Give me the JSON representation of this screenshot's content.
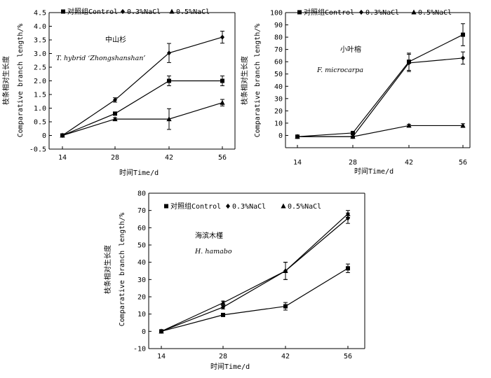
{
  "legend_labels": [
    "对照组Control",
    "0.3%NaCl",
    "0.5%NaCl"
  ],
  "xlabel": "时间Time/d",
  "ylabel_cn": "枝条相对生长度",
  "ylabel_en": "Comparative branch length/%",
  "chart_data": [
    {
      "type": "line",
      "title_cn": "中山杉",
      "title_en": "T. hybrid ‘Zhongshanshan’",
      "x": [
        14,
        28,
        42,
        56
      ],
      "xlabel": "时间Time/d",
      "ylim": [
        -0.5,
        4.5
      ],
      "yticks": [
        -0.5,
        0,
        0.5,
        1.0,
        1.5,
        2.0,
        2.5,
        3.0,
        3.5,
        4.0,
        4.5
      ],
      "ytick_labels": [
        "-0.5",
        "0",
        "0.5",
        "1.0",
        "1.5",
        "2.0",
        "2.5",
        "3.0",
        "3.5",
        "4.0",
        "4.5"
      ],
      "legend_position": "top",
      "series": [
        {
          "name": "对照组Control",
          "marker": "square",
          "values": [
            0,
            0.8,
            2.0,
            2.0
          ],
          "errors": [
            0,
            0.05,
            0.18,
            0.18
          ]
        },
        {
          "name": "0.3%NaCl",
          "marker": "circle",
          "values": [
            0,
            1.3,
            3.02,
            3.6
          ],
          "errors": [
            0,
            0.08,
            0.35,
            0.22
          ]
        },
        {
          "name": "0.5%NaCl",
          "marker": "triangle",
          "values": [
            0,
            0.6,
            0.6,
            1.2
          ],
          "errors": [
            0,
            0.05,
            0.38,
            0.12
          ]
        }
      ]
    },
    {
      "type": "line",
      "title_cn": "小叶榕",
      "title_en": "F. microcarpa",
      "x": [
        14,
        28,
        42,
        56
      ],
      "xlabel": "时间Time/d",
      "ylim": [
        -10,
        100
      ],
      "yticks": [
        0,
        10,
        20,
        30,
        40,
        50,
        60,
        70,
        80,
        90,
        100
      ],
      "ytick_labels": [
        "0",
        "10",
        "20",
        "30",
        "40",
        "50",
        "60",
        "70",
        "80",
        "90",
        "100"
      ],
      "legend_position": "top",
      "series": [
        {
          "name": "对照组Control",
          "marker": "square",
          "values": [
            -1,
            2,
            60,
            82
          ],
          "errors": [
            0,
            1,
            7,
            9
          ]
        },
        {
          "name": "0.3%NaCl",
          "marker": "circle",
          "values": [
            -1,
            -1,
            59,
            63
          ],
          "errors": [
            0,
            0.5,
            7,
            5
          ]
        },
        {
          "name": "0.5%NaCl",
          "marker": "triangle",
          "values": [
            -1,
            -1,
            8,
            8
          ],
          "errors": [
            0,
            0.5,
            1,
            1.5
          ]
        }
      ]
    },
    {
      "type": "line",
      "title_cn": "海滨木槿",
      "title_en": "H. hamabo",
      "x": [
        14,
        28,
        42,
        56
      ],
      "xlabel": "时间Time/d",
      "ylim": [
        -10,
        80
      ],
      "yticks": [
        -10,
        0,
        10,
        20,
        30,
        40,
        50,
        60,
        70,
        80
      ],
      "ytick_labels": [
        "-10",
        "0",
        "10",
        "20",
        "30",
        "40",
        "50",
        "60",
        "70",
        "80"
      ],
      "legend_position": "top",
      "series": [
        {
          "name": "对照组Control",
          "marker": "square",
          "values": [
            0,
            9.5,
            14.5,
            36.5
          ],
          "errors": [
            0,
            0.8,
            2.2,
            2.5
          ]
        },
        {
          "name": "0.3%NaCl",
          "marker": "circle",
          "values": [
            0,
            14,
            35,
            65.5
          ],
          "errors": [
            0,
            1,
            5,
            3
          ]
        },
        {
          "name": "0.5%NaCl",
          "marker": "triangle",
          "values": [
            0,
            16.5,
            35,
            68
          ],
          "errors": [
            0,
            1,
            5,
            2
          ]
        }
      ]
    }
  ]
}
